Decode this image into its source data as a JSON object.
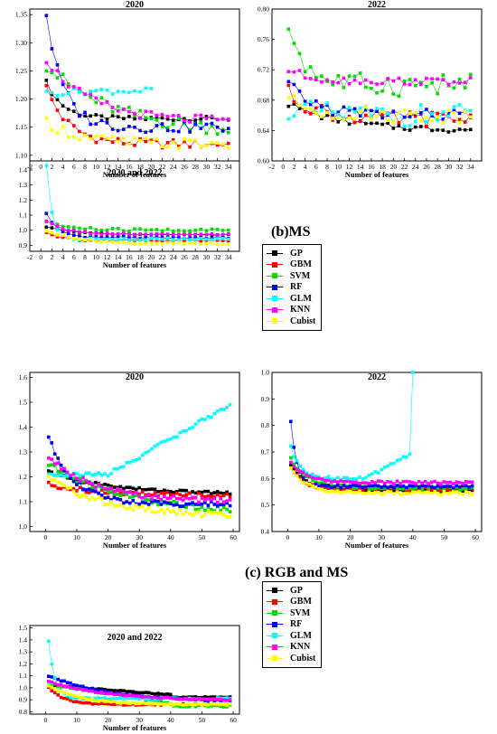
{
  "sections": {
    "b_label": "(b)MS",
    "c_label": "(c) RGB and MS"
  },
  "legend": [
    {
      "name": "GP",
      "color": "#000000"
    },
    {
      "name": "GBM",
      "color": "#ff0000"
    },
    {
      "name": "SVM",
      "color": "#00dd00"
    },
    {
      "name": "RF",
      "color": "#0000ff"
    },
    {
      "name": "GLM",
      "color": "#00ffff"
    },
    {
      "name": "KNN",
      "color": "#ff00ff"
    },
    {
      "name": "Cubist",
      "color": "#ffff00"
    }
  ],
  "chart_data": [
    {
      "id": "ms-2020",
      "type": "scatter",
      "title": "2020",
      "xlabel": "Number of features",
      "ylabel": "",
      "xlim": [
        -2,
        36
      ],
      "ylim": [
        1.09,
        1.36
      ],
      "xticks": [
        -2,
        0,
        2,
        4,
        6,
        8,
        10,
        12,
        14,
        16,
        18,
        20,
        22,
        24,
        26,
        28,
        30,
        32,
        34
      ],
      "yticks": [
        1.1,
        1.15,
        1.2,
        1.25,
        1.3,
        1.35
      ],
      "ydec": 2,
      "series": [
        {
          "name": "GP",
          "n": 34,
          "start": 1.23,
          "end": 1.165,
          "decay": 3,
          "amp": 0.004
        },
        {
          "name": "GBM",
          "n": 34,
          "start": 1.22,
          "end": 1.12,
          "decay": 4,
          "amp": 0.008
        },
        {
          "name": "SVM",
          "n": 34,
          "start": 1.26,
          "end": 1.14,
          "decay": 12,
          "amp": 0.012
        },
        {
          "name": "RF",
          "n": 34,
          "start": 1.35,
          "end": 1.15,
          "decay": 3,
          "amp": 0.01
        },
        {
          "name": "GLM",
          "n": 20,
          "start": 1.21,
          "end": 1.215,
          "decay": 5,
          "amp": 0.006
        },
        {
          "name": "KNN",
          "n": 34,
          "start": 1.27,
          "end": 1.16,
          "decay": 8,
          "amp": 0.008
        },
        {
          "name": "Cubist",
          "n": 34,
          "start": 1.16,
          "end": 1.12,
          "decay": 6,
          "amp": 0.01
        }
      ]
    },
    {
      "id": "ms-2022",
      "type": "scatter",
      "title": "2022",
      "xlabel": "Number of features",
      "ylabel": "",
      "xlim": [
        -2,
        36
      ],
      "ylim": [
        0.6,
        0.8
      ],
      "xticks": [
        -2,
        0,
        2,
        4,
        6,
        8,
        10,
        12,
        14,
        16,
        18,
        20,
        22,
        24,
        26,
        28,
        30,
        32,
        34
      ],
      "yticks": [
        0.6,
        0.64,
        0.68,
        0.72,
        0.76,
        0.8
      ],
      "ydec": 2,
      "series": [
        {
          "name": "GP",
          "n": 34,
          "start": 0.675,
          "end": 0.64,
          "decay": 10,
          "amp": 0.004
        },
        {
          "name": "GBM",
          "n": 34,
          "start": 0.69,
          "end": 0.655,
          "decay": 5,
          "amp": 0.01
        },
        {
          "name": "SVM",
          "n": 34,
          "start": 0.78,
          "end": 0.7,
          "decay": 3,
          "amp": 0.015
        },
        {
          "name": "RF",
          "n": 34,
          "start": 0.7,
          "end": 0.66,
          "decay": 5,
          "amp": 0.008
        },
        {
          "name": "GLM",
          "n": 34,
          "start": 0.67,
          "end": 0.66,
          "decay": 4,
          "amp": 0.015
        },
        {
          "name": "KNN",
          "n": 34,
          "start": 0.72,
          "end": 0.705,
          "decay": 4,
          "amp": 0.005
        },
        {
          "name": "Cubist",
          "n": 34,
          "start": 0.68,
          "end": 0.66,
          "decay": 5,
          "amp": 0.01
        }
      ]
    },
    {
      "id": "ms-both",
      "type": "scatter",
      "title": "2020  and 2022",
      "xlabel": "Number of features",
      "ylabel": "",
      "xlim": [
        -2,
        36
      ],
      "ylim": [
        0.86,
        1.46
      ],
      "xticks": [
        -2,
        0,
        2,
        4,
        6,
        8,
        10,
        12,
        14,
        16,
        18,
        20,
        22,
        24,
        26,
        28,
        30,
        32,
        34
      ],
      "yticks": [
        0.9,
        1.0,
        1.1,
        1.2,
        1.3,
        1.4
      ],
      "ydec": 1,
      "series": [
        {
          "name": "GP",
          "n": 34,
          "start": 1.02,
          "end": 0.97,
          "decay": 6,
          "amp": 0.004
        },
        {
          "name": "GBM",
          "n": 34,
          "start": 0.99,
          "end": 0.93,
          "decay": 3,
          "amp": 0.006
        },
        {
          "name": "SVM",
          "n": 34,
          "start": 1.06,
          "end": 1.0,
          "decay": 4,
          "amp": 0.01
        },
        {
          "name": "RF",
          "n": 34,
          "start": 1.11,
          "end": 0.95,
          "decay": 2,
          "amp": 0.006
        },
        {
          "name": "GLM",
          "n": 34,
          "start": 1.43,
          "end": 0.94,
          "decay": 1,
          "amp": 0.006
        },
        {
          "name": "KNN",
          "n": 34,
          "start": 1.06,
          "end": 0.97,
          "decay": 4,
          "amp": 0.006
        },
        {
          "name": "Cubist",
          "n": 34,
          "start": 1.0,
          "end": 0.91,
          "decay": 6,
          "amp": 0.006
        }
      ]
    },
    {
      "id": "rgbms-2020",
      "type": "scatter",
      "title": "2020",
      "xlabel": "Number of features",
      "ylabel": "",
      "xlim": [
        -5,
        62
      ],
      "ylim": [
        0.98,
        1.62
      ],
      "xticks": [
        0,
        10,
        20,
        30,
        40,
        50,
        60
      ],
      "yticks": [
        1.0,
        1.1,
        1.2,
        1.3,
        1.4,
        1.5,
        1.6
      ],
      "ydec": 1,
      "series": [
        {
          "name": "GP",
          "n": 59,
          "start": 1.22,
          "end": 1.13,
          "decay": 20,
          "amp": 0.006
        },
        {
          "name": "GBM",
          "n": 59,
          "start": 1.17,
          "end": 1.12,
          "decay": 20,
          "amp": 0.01
        },
        {
          "name": "SVM",
          "n": 59,
          "start": 1.25,
          "end": 1.05,
          "decay": 25,
          "amp": 0.012
        },
        {
          "name": "RF",
          "n": 59,
          "start": 1.36,
          "end": 1.09,
          "decay": 8,
          "amp": 0.01
        },
        {
          "name": "GLM",
          "n": 59,
          "start": 1.21,
          "end": 1.21,
          "decay": 10,
          "amp": 0.008,
          "kind": "rise",
          "rise_start": 20,
          "rise_end": 1.49
        },
        {
          "name": "KNN",
          "n": 59,
          "start": 1.28,
          "end": 1.1,
          "decay": 15,
          "amp": 0.01
        },
        {
          "name": "Cubist",
          "n": 59,
          "start": 1.2,
          "end": 1.04,
          "decay": 18,
          "amp": 0.012
        }
      ]
    },
    {
      "id": "rgbms-2022",
      "type": "scatter",
      "title": "2022",
      "xlabel": "Number of features",
      "ylabel": "",
      "xlim": [
        -5,
        62
      ],
      "ylim": [
        0.4,
        1.0
      ],
      "xticks": [
        0,
        10,
        20,
        30,
        40,
        50,
        60
      ],
      "yticks": [
        0.4,
        0.5,
        0.6,
        0.7,
        0.8,
        0.9,
        1.0
      ],
      "ydec": 1,
      "series": [
        {
          "name": "GP",
          "n": 59,
          "start": 0.65,
          "end": 0.555,
          "decay": 5,
          "amp": 0.004
        },
        {
          "name": "GBM",
          "n": 59,
          "start": 0.64,
          "end": 0.56,
          "decay": 4,
          "amp": 0.006
        },
        {
          "name": "SVM",
          "n": 59,
          "start": 0.68,
          "end": 0.565,
          "decay": 5,
          "amp": 0.006
        },
        {
          "name": "RF",
          "n": 59,
          "start": 0.81,
          "end": 0.57,
          "decay": 2,
          "amp": 0.005
        },
        {
          "name": "GLM",
          "n": 40,
          "start": 0.72,
          "end": 0.6,
          "decay": 3,
          "amp": 0.006,
          "kind": "rise",
          "rise_start": 25,
          "rise_end": 0.7,
          "spike_end": 1.0
        },
        {
          "name": "KNN",
          "n": 59,
          "start": 0.66,
          "end": 0.585,
          "decay": 5,
          "amp": 0.005
        },
        {
          "name": "Cubist",
          "n": 59,
          "start": 0.64,
          "end": 0.545,
          "decay": 5,
          "amp": 0.006
        }
      ]
    },
    {
      "id": "rgbms-both",
      "type": "scatter",
      "title": "2020 and 2022",
      "xlabel": "Number of features",
      "ylabel": "",
      "xlim": [
        -5,
        62
      ],
      "ylim": [
        0.78,
        1.52
      ],
      "xticks": [
        0,
        10,
        20,
        30,
        40,
        50,
        60
      ],
      "yticks": [
        0.8,
        0.9,
        1.0,
        1.1,
        1.2,
        1.3,
        1.4,
        1.5
      ],
      "ydec": 1,
      "series": [
        {
          "name": "GP",
          "n": 59,
          "start": 1.02,
          "end": 0.9,
          "decay": 40,
          "amp": 0.004,
          "kind": "step",
          "step_at": 40,
          "step_val": 0.92
        },
        {
          "name": "GBM",
          "n": 59,
          "start": 1.0,
          "end": 0.86,
          "decay": 5,
          "amp": 0.006
        },
        {
          "name": "SVM",
          "n": 59,
          "start": 1.03,
          "end": 0.86,
          "decay": 40,
          "amp": 0.01,
          "kind": "step",
          "step_at": 40,
          "step_val": 0.85
        },
        {
          "name": "RF",
          "n": 59,
          "start": 1.1,
          "end": 0.88,
          "decay": 20,
          "amp": 0.006
        },
        {
          "name": "GLM",
          "n": 59,
          "start": 1.39,
          "end": 0.91,
          "decay": 2,
          "amp": 0.006
        },
        {
          "name": "KNN",
          "n": 59,
          "start": 1.05,
          "end": 0.89,
          "decay": 20,
          "amp": 0.006
        },
        {
          "name": "Cubist",
          "n": 59,
          "start": 1.02,
          "end": 0.86,
          "decay": 10,
          "amp": 0.006
        }
      ]
    }
  ]
}
